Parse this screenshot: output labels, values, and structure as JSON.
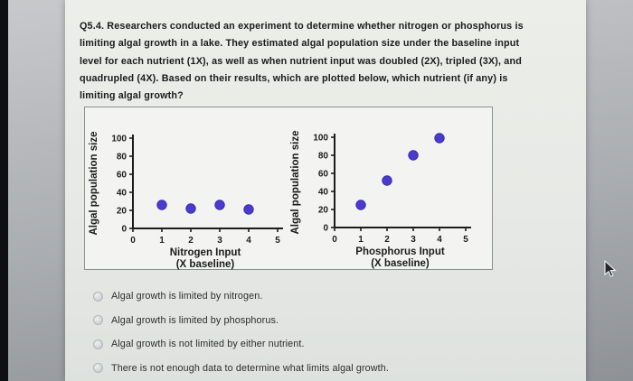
{
  "question": {
    "lines": [
      "Q5.4. Researchers conducted an experiment to determine whether nitrogen or phosphorus is",
      "limiting algal growth in a lake. They estimated algal population size under the baseline input",
      "level for each nutrient (1X), as well as when nutrient input was doubled (2X), tripled (3X), and",
      "quadrupled (4X). Based on their results, which are plotted below, which nutrient (if any) is",
      "limiting algal growth?"
    ]
  },
  "chart_data": [
    {
      "type": "scatter",
      "x": [
        1,
        2,
        3,
        4
      ],
      "values": [
        26,
        22,
        26,
        21
      ],
      "xlabel_line1": "Nitrogen Input",
      "xlabel_line2": "(X baseline)",
      "ylabel": "Algal population size",
      "xlim": [
        0,
        5
      ],
      "ylim": [
        0,
        100
      ],
      "xticks": [
        0,
        1,
        2,
        3,
        4,
        5
      ],
      "yticks": [
        0,
        20,
        40,
        60,
        80,
        100
      ],
      "grid": false,
      "legend": "none",
      "dot_color": "#4a3bce",
      "dot_edge": "#382cae",
      "axis_color": "#1c1c1c"
    },
    {
      "type": "scatter",
      "x": [
        1,
        2,
        3,
        4
      ],
      "values": [
        25,
        52,
        80,
        99
      ],
      "xlabel_line1": "Phosphorus Input",
      "xlabel_line2": "(X baseline)",
      "ylabel": "Algal population size",
      "xlim": [
        0,
        5
      ],
      "ylim": [
        0,
        100
      ],
      "xticks": [
        0,
        1,
        2,
        3,
        4,
        5
      ],
      "yticks": [
        0,
        20,
        40,
        60,
        80,
        100
      ],
      "grid": false,
      "legend": "none",
      "dot_color": "#4a3bce",
      "dot_edge": "#382cae",
      "axis_color": "#1c1c1c"
    }
  ],
  "options": [
    {
      "label": "Algal growth is limited by nitrogen."
    },
    {
      "label": "Algal growth is limited by phosphorus."
    },
    {
      "label": "Algal growth is not limited by either nutrient."
    },
    {
      "label": "There is not enough data to determine what limits algal growth."
    }
  ]
}
